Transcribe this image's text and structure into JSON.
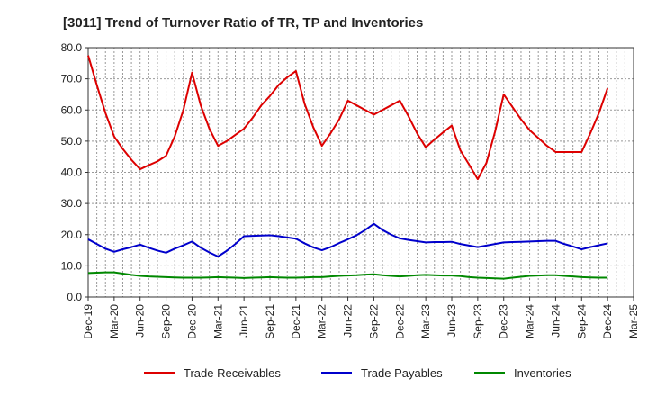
{
  "chart_data": {
    "type": "line",
    "title": "[3011]  Trend of Turnover Ratio of TR, TP and Inventories",
    "xlabel": "",
    "ylabel": "",
    "ylim": [
      0,
      80
    ],
    "yticks": [
      "0.0",
      "10.0",
      "20.0",
      "30.0",
      "40.0",
      "50.0",
      "60.0",
      "70.0",
      "80.0"
    ],
    "xtick_labels": [
      "Dec-19",
      "Mar-20",
      "Jun-20",
      "Sep-20",
      "Dec-20",
      "Mar-21",
      "Jun-21",
      "Sep-21",
      "Dec-21",
      "Mar-22",
      "Jun-22",
      "Sep-22",
      "Dec-22",
      "Mar-23",
      "Jun-23",
      "Sep-23",
      "Dec-23",
      "Mar-24",
      "Jun-24",
      "Sep-24",
      "Dec-24",
      "Mar-25"
    ],
    "x": [
      "Dec-19",
      "Jan-20",
      "Feb-20",
      "Mar-20",
      "Apr-20",
      "May-20",
      "Jun-20",
      "Jul-20",
      "Aug-20",
      "Sep-20",
      "Oct-20",
      "Nov-20",
      "Dec-20",
      "Jan-21",
      "Feb-21",
      "Mar-21",
      "Apr-21",
      "May-21",
      "Jun-21",
      "Jul-21",
      "Aug-21",
      "Sep-21",
      "Oct-21",
      "Nov-21",
      "Dec-21",
      "Jan-22",
      "Feb-22",
      "Mar-22",
      "Apr-22",
      "May-22",
      "Jun-22",
      "Jul-22",
      "Aug-22",
      "Sep-22",
      "Oct-22",
      "Nov-22",
      "Dec-22",
      "Jan-23",
      "Feb-23",
      "Mar-23",
      "Apr-23",
      "May-23",
      "Jun-23",
      "Jul-23",
      "Aug-23",
      "Sep-23",
      "Oct-23",
      "Nov-23",
      "Dec-23",
      "Jan-24",
      "Feb-24",
      "Mar-24",
      "Apr-24",
      "May-24",
      "Jun-24",
      "Jul-24",
      "Aug-24",
      "Sep-24",
      "Oct-24",
      "Nov-24",
      "Dec-24"
    ],
    "grid": true,
    "legend_position": "bottom",
    "series": [
      {
        "name": "Trade Receivables",
        "color": "#dd0000",
        "values": [
          77.5,
          68.0,
          59.0,
          51.5,
          47.5,
          44.0,
          41.0,
          42.3,
          43.5,
          45.3,
          51.5,
          60.0,
          72.0,
          61.5,
          54.0,
          48.5,
          50.0,
          52.0,
          54.0,
          57.5,
          61.5,
          64.5,
          68.0,
          70.5,
          72.5,
          62.0,
          54.5,
          48.5,
          52.5,
          57.0,
          63.0,
          61.5,
          60.0,
          58.5,
          60.0,
          61.5,
          63.0,
          58.0,
          52.5,
          48.0,
          50.5,
          52.8,
          55.0,
          47.0,
          42.5,
          37.8,
          43.0,
          53.0,
          65.0,
          61.0,
          57.0,
          53.5,
          51.0,
          48.5,
          46.5,
          46.5,
          46.5,
          46.5,
          52.5,
          59.0,
          67.0
        ]
      },
      {
        "name": "Trade Payables",
        "color": "#0000cc",
        "values": [
          18.5,
          17.0,
          15.5,
          14.5,
          15.3,
          16.0,
          16.8,
          15.8,
          14.9,
          14.2,
          15.5,
          16.6,
          17.8,
          15.8,
          14.3,
          13.0,
          14.8,
          17.0,
          19.5,
          19.6,
          19.7,
          19.8,
          19.5,
          19.1,
          18.7,
          17.2,
          15.9,
          15.0,
          16.0,
          17.3,
          18.5,
          19.8,
          21.5,
          23.5,
          21.5,
          20.0,
          18.8,
          18.3,
          17.9,
          17.5,
          17.6,
          17.6,
          17.7,
          17.0,
          16.5,
          16.0,
          16.5,
          17.0,
          17.5,
          17.6,
          17.7,
          17.8,
          17.9,
          18.0,
          18.0,
          17.0,
          16.2,
          15.3,
          16.0,
          16.6,
          17.2
        ]
      },
      {
        "name": "Inventories",
        "color": "#008800",
        "values": [
          7.7,
          7.8,
          7.9,
          7.9,
          7.5,
          7.1,
          6.8,
          6.6,
          6.5,
          6.4,
          6.3,
          6.2,
          6.2,
          6.2,
          6.3,
          6.4,
          6.3,
          6.2,
          6.1,
          6.2,
          6.3,
          6.4,
          6.3,
          6.2,
          6.2,
          6.3,
          6.4,
          6.4,
          6.6,
          6.8,
          6.9,
          7.0,
          7.2,
          7.3,
          7.0,
          6.8,
          6.6,
          6.8,
          7.0,
          7.1,
          7.0,
          6.9,
          6.9,
          6.7,
          6.4,
          6.2,
          6.1,
          6.0,
          5.9,
          6.2,
          6.5,
          6.8,
          6.9,
          7.0,
          7.0,
          6.8,
          6.6,
          6.4,
          6.3,
          6.2,
          6.2
        ]
      }
    ]
  }
}
